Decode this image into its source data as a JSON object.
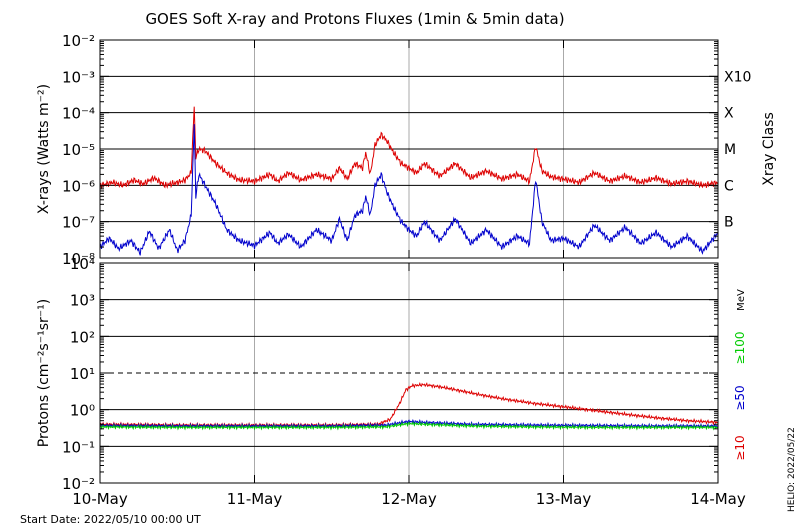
{
  "title": "GOES Soft X-ray and Protons Fluxes   (1min & 5min data)",
  "footer": {
    "start_date": "Start Date: 2022/05/10 00:00 UT",
    "credit": "HELIO: 2022/05/22"
  },
  "colors": {
    "xray_long": "#dd0000",
    "xray_short": "#0000cc",
    "p10": "#dd0000",
    "p50": "#0000cc",
    "p100": "#00cc00",
    "grid": "#000000",
    "day_line": "#aaaaaa"
  },
  "chart_data": [
    {
      "type": "line",
      "name": "xray",
      "ylabel": "X-rays (Watts m⁻²)",
      "ylabel_right": "Xray Class",
      "yscale": "log",
      "ylim": [
        1e-08,
        0.01
      ],
      "y_ticks": [
        "10⁻²",
        "10⁻³",
        "10⁻⁴",
        "10⁻⁵",
        "10⁻⁶",
        "10⁻⁷",
        "10⁻⁸"
      ],
      "class_labels": [
        "X10",
        "X",
        "M",
        "C",
        "B"
      ],
      "x_ticks": [
        "10-May",
        "11-May",
        "12-May",
        "13-May",
        "14-May"
      ],
      "xlim_days": [
        0,
        4
      ],
      "series": [
        {
          "color_key": "xray_long",
          "points": [
            [
              0.0,
              1e-06
            ],
            [
              0.08,
              1.2e-06
            ],
            [
              0.15,
              1e-06
            ],
            [
              0.22,
              1.4e-06
            ],
            [
              0.28,
              1.1e-06
            ],
            [
              0.35,
              1.6e-06
            ],
            [
              0.42,
              1e-06
            ],
            [
              0.5,
              1.2e-06
            ],
            [
              0.55,
              1.4e-06
            ],
            [
              0.59,
              2.2e-06
            ],
            [
              0.61,
              0.00015
            ],
            [
              0.62,
              6e-06
            ],
            [
              0.64,
              1e-05
            ],
            [
              0.68,
              9e-06
            ],
            [
              0.75,
              4e-06
            ],
            [
              0.82,
              2.2e-06
            ],
            [
              0.9,
              1.4e-06
            ],
            [
              1.0,
              1.3e-06
            ],
            [
              1.1,
              2e-06
            ],
            [
              1.15,
              1.3e-06
            ],
            [
              1.22,
              2.2e-06
            ],
            [
              1.3,
              1.4e-06
            ],
            [
              1.4,
              2e-06
            ],
            [
              1.5,
              1.5e-06
            ],
            [
              1.55,
              3e-06
            ],
            [
              1.6,
              1.5e-06
            ],
            [
              1.65,
              4e-06
            ],
            [
              1.7,
              3e-06
            ],
            [
              1.72,
              8e-06
            ],
            [
              1.75,
              2e-06
            ],
            [
              1.78,
              1.3e-05
            ],
            [
              1.82,
              2.5e-05
            ],
            [
              1.86,
              1.6e-05
            ],
            [
              1.9,
              8e-06
            ],
            [
              1.95,
              4e-06
            ],
            [
              2.0,
              3e-06
            ],
            [
              2.05,
              2.2e-06
            ],
            [
              2.1,
              4e-06
            ],
            [
              2.2,
              1.8e-06
            ],
            [
              2.3,
              4e-06
            ],
            [
              2.4,
              1.6e-06
            ],
            [
              2.5,
              2.5e-06
            ],
            [
              2.6,
              1.5e-06
            ],
            [
              2.7,
              2e-06
            ],
            [
              2.78,
              1.3e-06
            ],
            [
              2.82,
              1.2e-05
            ],
            [
              2.86,
              2.5e-06
            ],
            [
              2.92,
              1.7e-06
            ],
            [
              3.0,
              1.5e-06
            ],
            [
              3.1,
              1.2e-06
            ],
            [
              3.2,
              2.2e-06
            ],
            [
              3.3,
              1.3e-06
            ],
            [
              3.4,
              1.8e-06
            ],
            [
              3.5,
              1.2e-06
            ],
            [
              3.6,
              1.6e-06
            ],
            [
              3.7,
              1.1e-06
            ],
            [
              3.8,
              1.3e-06
            ],
            [
              3.9,
              1e-06
            ],
            [
              4.0,
              1.2e-06
            ]
          ]
        },
        {
          "color_key": "xray_short",
          "points": [
            [
              0.0,
              2e-08
            ],
            [
              0.06,
              3.5e-08
            ],
            [
              0.12,
              1.8e-08
            ],
            [
              0.2,
              3e-08
            ],
            [
              0.26,
              1.4e-08
            ],
            [
              0.32,
              5.5e-08
            ],
            [
              0.38,
              1.8e-08
            ],
            [
              0.45,
              6e-08
            ],
            [
              0.5,
              1.6e-08
            ],
            [
              0.55,
              3e-08
            ],
            [
              0.59,
              1.5e-07
            ],
            [
              0.61,
              5e-05
            ],
            [
              0.62,
              5e-07
            ],
            [
              0.64,
              2e-06
            ],
            [
              0.68,
              1e-06
            ],
            [
              0.75,
              3e-07
            ],
            [
              0.82,
              6e-08
            ],
            [
              0.9,
              3e-08
            ],
            [
              1.0,
              2.2e-08
            ],
            [
              1.1,
              5e-08
            ],
            [
              1.15,
              2.5e-08
            ],
            [
              1.22,
              4.5e-08
            ],
            [
              1.3,
              2e-08
            ],
            [
              1.4,
              6e-08
            ],
            [
              1.5,
              3e-08
            ],
            [
              1.55,
              1.2e-07
            ],
            [
              1.6,
              3e-08
            ],
            [
              1.65,
              1.5e-07
            ],
            [
              1.7,
              2e-07
            ],
            [
              1.72,
              5e-07
            ],
            [
              1.75,
              1.5e-07
            ],
            [
              1.78,
              1e-06
            ],
            [
              1.82,
              2e-06
            ],
            [
              1.86,
              6e-07
            ],
            [
              1.9,
              2.5e-07
            ],
            [
              1.95,
              1e-07
            ],
            [
              2.0,
              6e-08
            ],
            [
              2.05,
              4e-08
            ],
            [
              2.1,
              1e-07
            ],
            [
              2.2,
              3e-08
            ],
            [
              2.3,
              1.2e-07
            ],
            [
              2.4,
              2.5e-08
            ],
            [
              2.5,
              6e-08
            ],
            [
              2.6,
              2e-08
            ],
            [
              2.7,
              4e-08
            ],
            [
              2.78,
              2.5e-08
            ],
            [
              2.82,
              1.5e-06
            ],
            [
              2.86,
              1e-07
            ],
            [
              2.92,
              3e-08
            ],
            [
              3.0,
              3.5e-08
            ],
            [
              3.1,
              2e-08
            ],
            [
              3.2,
              8e-08
            ],
            [
              3.3,
              3e-08
            ],
            [
              3.4,
              7e-08
            ],
            [
              3.5,
              2.5e-08
            ],
            [
              3.6,
              5e-08
            ],
            [
              3.7,
              2e-08
            ],
            [
              3.8,
              4e-08
            ],
            [
              3.9,
              1.5e-08
            ],
            [
              4.0,
              5e-08
            ]
          ]
        }
      ]
    },
    {
      "type": "line",
      "name": "protons",
      "ylabel": "Protons (cm⁻²s⁻¹sr⁻¹)",
      "yscale": "log",
      "ylim": [
        0.01,
        10000
      ],
      "y_ticks": [
        "10⁴",
        "10³",
        "10²",
        "10¹",
        "10⁰",
        "10⁻¹",
        "10⁻²"
      ],
      "dashed_threshold": 10,
      "unit_label": "MeV",
      "legend": [
        "≥10",
        "≥50",
        "≥100"
      ],
      "x_ticks": [
        "10-May",
        "11-May",
        "12-May",
        "13-May",
        "14-May"
      ],
      "xlim_days": [
        0,
        4
      ],
      "series": [
        {
          "name": "≥10",
          "color_key": "p10",
          "points": [
            [
              0.0,
              0.4
            ],
            [
              0.5,
              0.38
            ],
            [
              1.0,
              0.38
            ],
            [
              1.5,
              0.38
            ],
            [
              1.8,
              0.4
            ],
            [
              1.88,
              0.55
            ],
            [
              1.94,
              1.5
            ],
            [
              1.98,
              3.5
            ],
            [
              2.02,
              4.5
            ],
            [
              2.1,
              4.8
            ],
            [
              2.2,
              4.2
            ],
            [
              2.3,
              3.5
            ],
            [
              2.45,
              2.6
            ],
            [
              2.6,
              2.0
            ],
            [
              2.8,
              1.5
            ],
            [
              3.0,
              1.2
            ],
            [
              3.2,
              0.95
            ],
            [
              3.4,
              0.75
            ],
            [
              3.6,
              0.6
            ],
            [
              3.8,
              0.5
            ],
            [
              4.0,
              0.45
            ]
          ]
        },
        {
          "name": "≥50",
          "color_key": "p50",
          "points": [
            [
              0.0,
              0.37
            ],
            [
              0.5,
              0.36
            ],
            [
              1.0,
              0.36
            ],
            [
              1.5,
              0.36
            ],
            [
              1.85,
              0.38
            ],
            [
              2.0,
              0.48
            ],
            [
              2.1,
              0.45
            ],
            [
              2.4,
              0.4
            ],
            [
              2.8,
              0.38
            ],
            [
              3.2,
              0.37
            ],
            [
              3.6,
              0.36
            ],
            [
              4.0,
              0.36
            ]
          ]
        },
        {
          "name": "≥100",
          "color_key": "p100",
          "points": [
            [
              0.0,
              0.34
            ],
            [
              0.5,
              0.33
            ],
            [
              1.0,
              0.33
            ],
            [
              1.5,
              0.33
            ],
            [
              1.85,
              0.34
            ],
            [
              2.0,
              0.42
            ],
            [
              2.1,
              0.4
            ],
            [
              2.4,
              0.36
            ],
            [
              2.8,
              0.34
            ],
            [
              3.2,
              0.33
            ],
            [
              3.6,
              0.33
            ],
            [
              4.0,
              0.33
            ]
          ]
        }
      ]
    }
  ]
}
